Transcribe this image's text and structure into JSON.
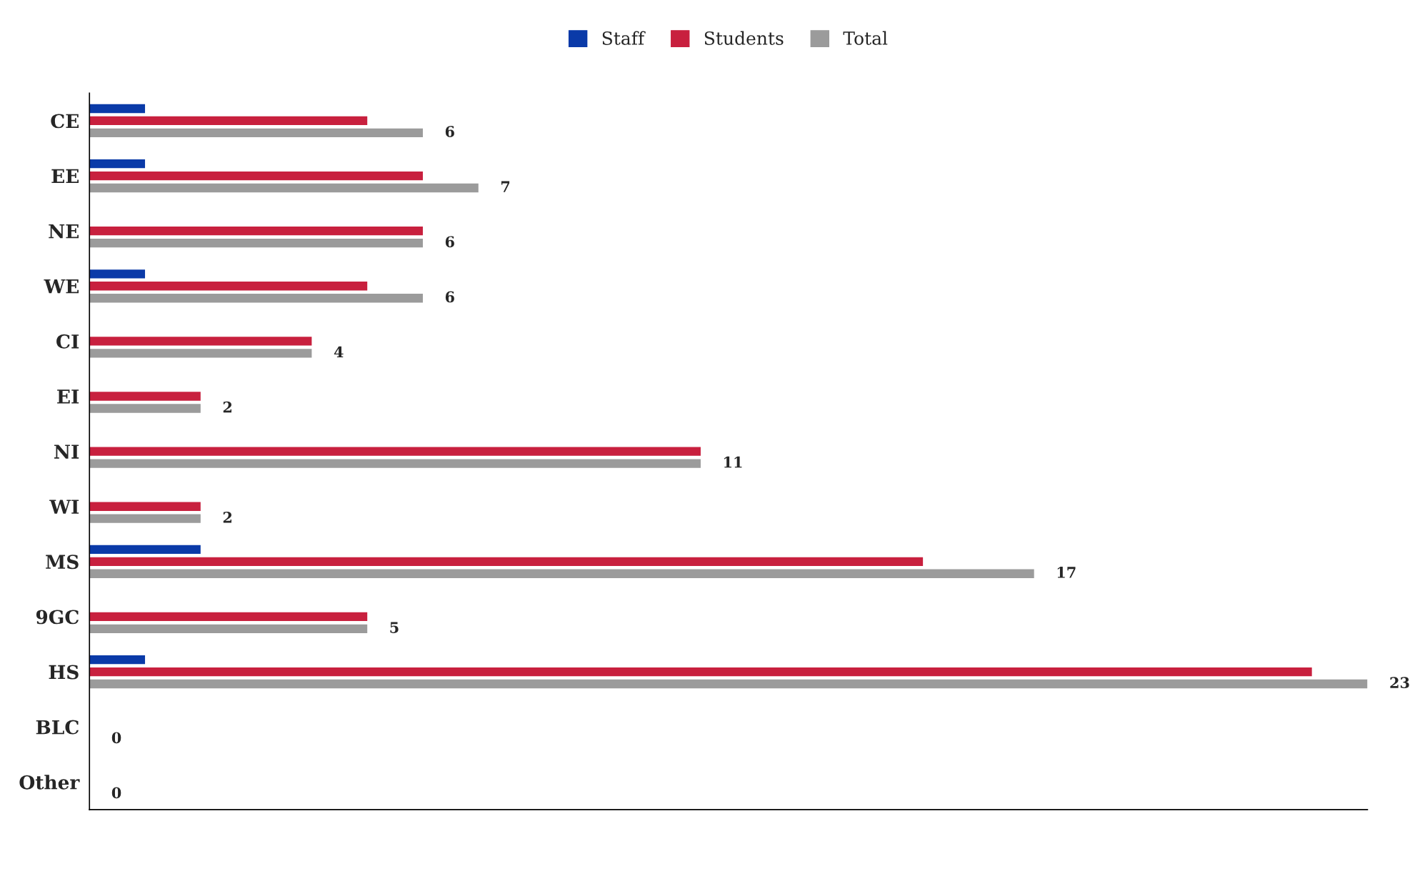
{
  "chart_data": {
    "type": "bar",
    "orientation": "horizontal",
    "categories": [
      "CE",
      "EE",
      "NE",
      "WE",
      "CI",
      "EI",
      "NI",
      "WI",
      "MS",
      "9GC",
      "HS",
      "BLC",
      "Other"
    ],
    "series": [
      {
        "name": "Staff",
        "color": "#0a3aa8",
        "values": [
          1,
          1,
          0,
          1,
          0,
          0,
          0,
          0,
          2,
          0,
          1,
          0,
          0
        ]
      },
      {
        "name": "Students",
        "color": "#c8203e",
        "values": [
          5,
          6,
          6,
          5,
          4,
          2,
          11,
          2,
          15,
          5,
          22,
          0,
          0
        ]
      },
      {
        "name": "Total",
        "color": "#9b9b9b",
        "values": [
          6,
          7,
          6,
          6,
          4,
          2,
          11,
          2,
          17,
          5,
          23,
          0,
          0
        ],
        "value_labels": [
          "6",
          "7",
          "6",
          "6",
          "4",
          "2",
          "11",
          "2",
          "17",
          "5",
          "23",
          "0",
          "0"
        ]
      }
    ],
    "xlim": [
      0,
      23
    ],
    "tick_labels": "y",
    "grid": false,
    "legend": "top"
  }
}
